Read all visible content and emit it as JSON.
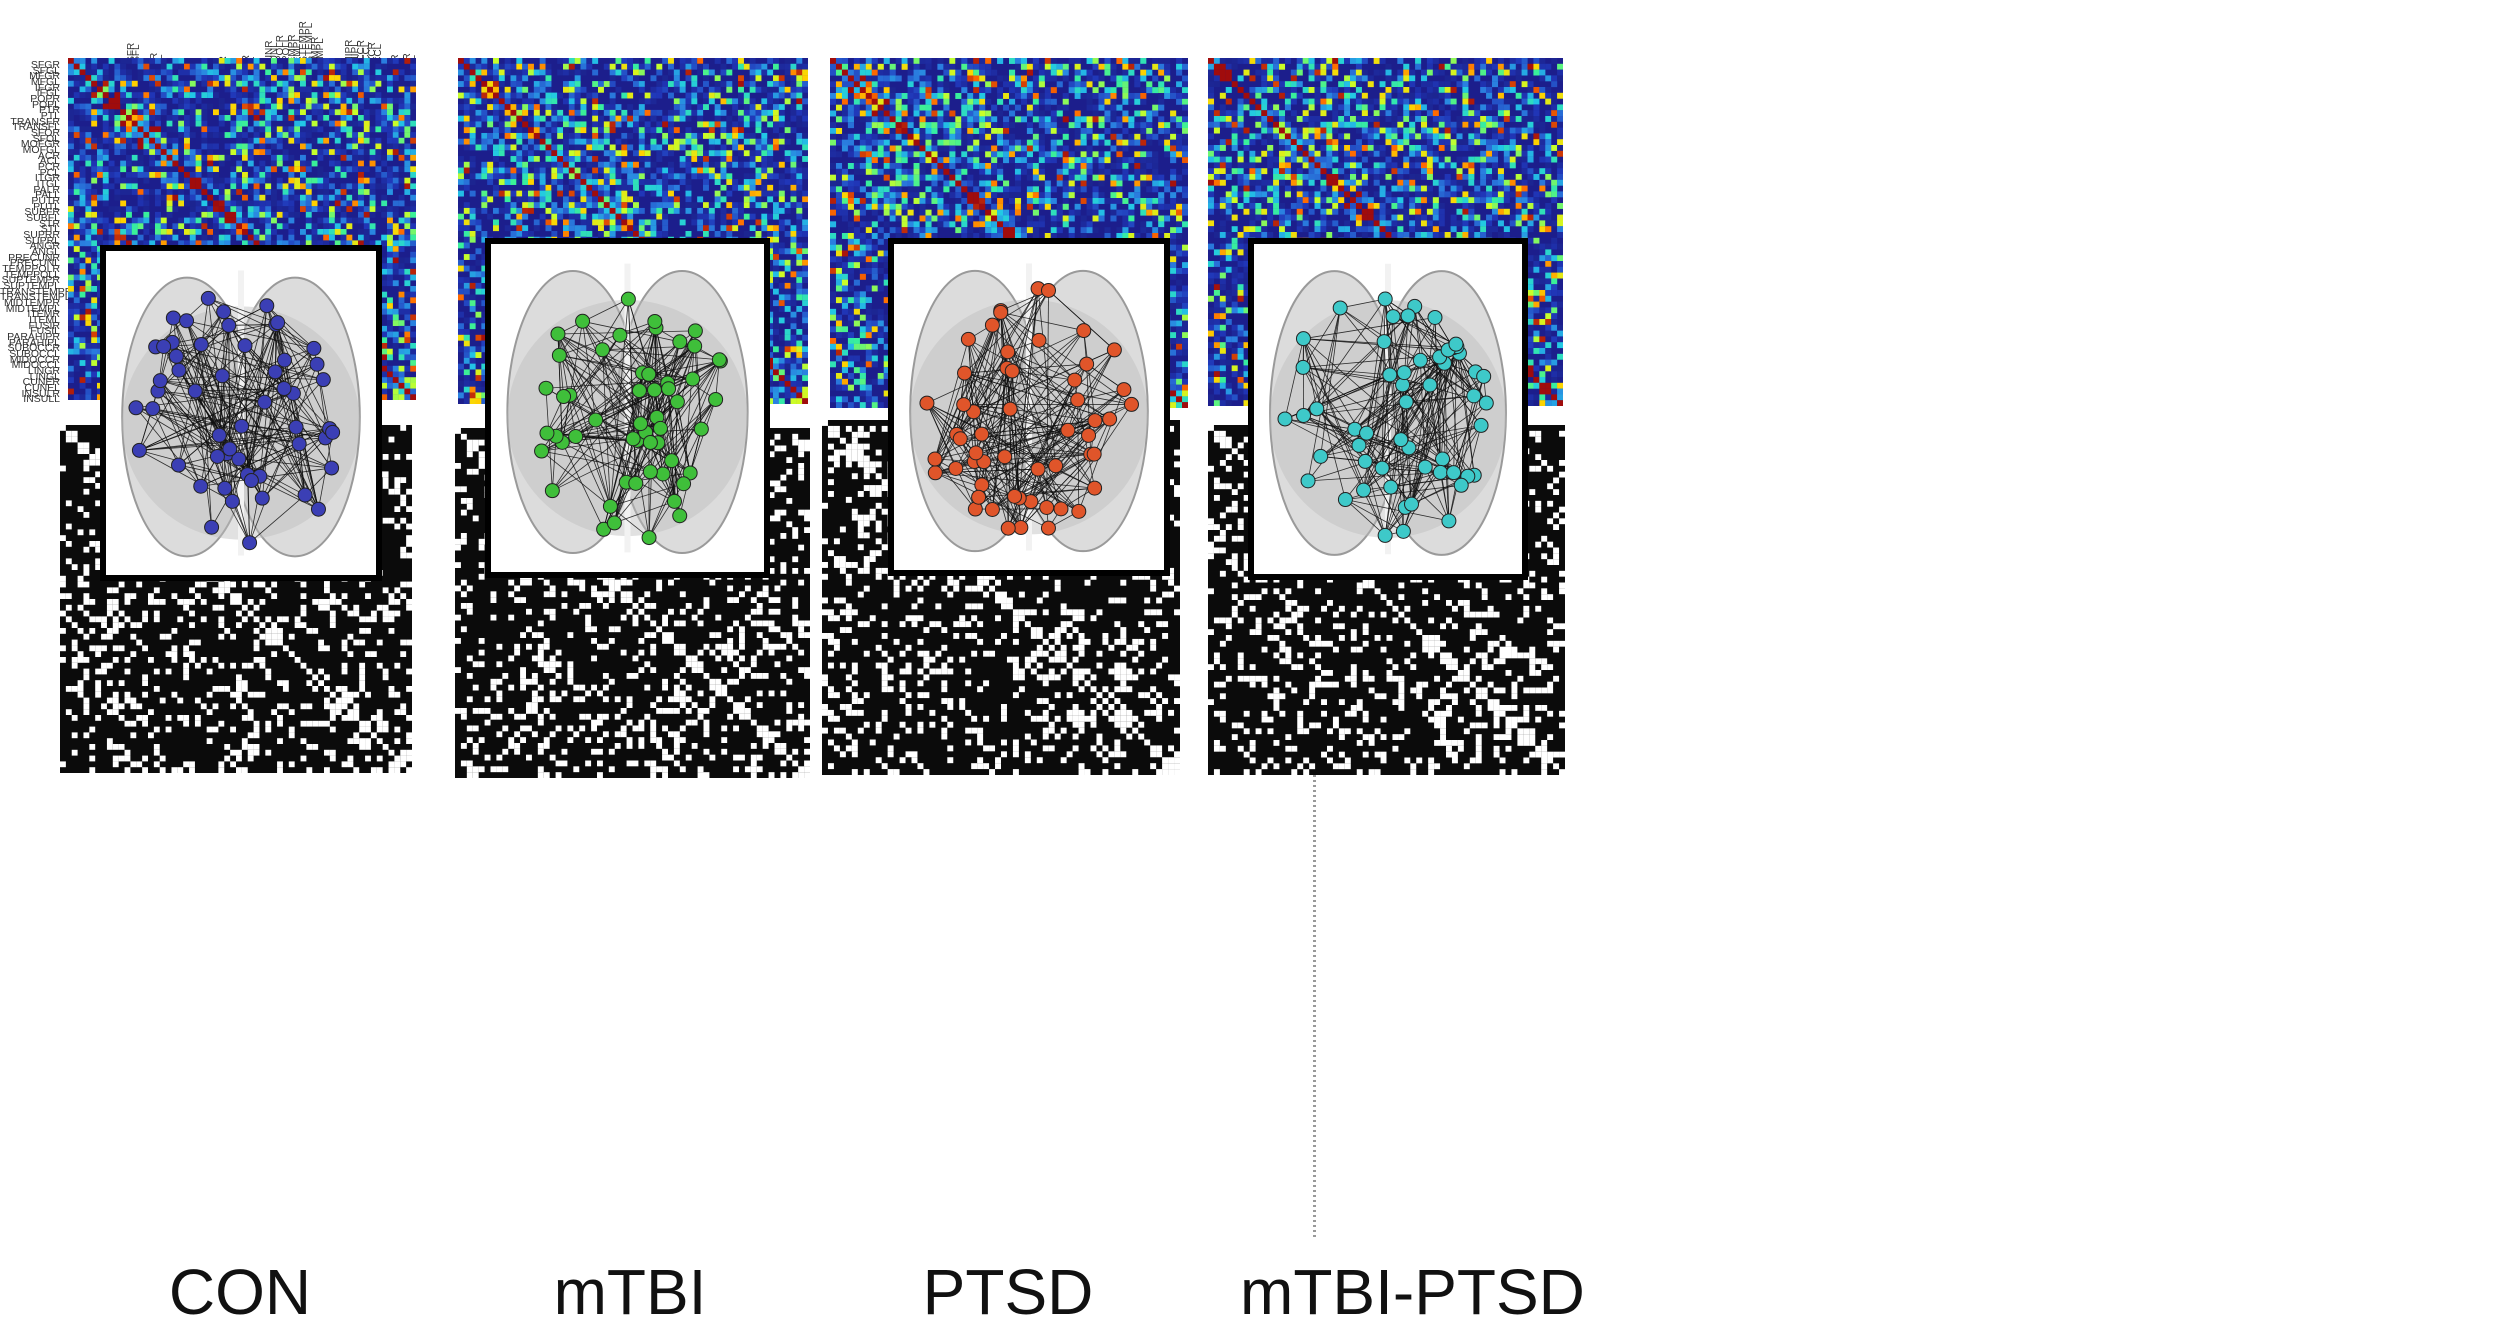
{
  "roi_labels": [
    "SFGR",
    "SFGL",
    "MFGR",
    "MFGL",
    "IFGR",
    "IFGL",
    "POPR",
    "POPL",
    "PTR",
    "PTL",
    "TRANSFR",
    "TRANSFL",
    "SFOR",
    "SFOL",
    "MOFGR",
    "MOFGL",
    "ACR",
    "ACL",
    "PCR",
    "PCL",
    "ITGR",
    "ITGL",
    "PALR",
    "PALL",
    "PUTR",
    "PUTL",
    "SUBFR",
    "SUBFL",
    "STR",
    "STL",
    "SUPRR",
    "SUPRL",
    "ANGR",
    "ANGL",
    "PRECUNR",
    "PRECUNL",
    "TEMPPOLR",
    "TEMPPOLL",
    "SUPTEMPR",
    "SUPTEMPL",
    "TRANSTEMPR",
    "TRANSTEMPL",
    "MIDTEMPR",
    "MIDTEMPL",
    "ITEMR",
    "ITEML",
    "FUSIR",
    "FUSIL",
    "PARAHIPR",
    "PARAHIPL",
    "SUBOCCR",
    "SUBOCCL",
    "MIDOCCR",
    "MIDOCCL",
    "LINGR",
    "LINGL",
    "CUNER",
    "CUNEL",
    "INSULR",
    "INSULL"
  ],
  "groups": [
    {
      "label": "CON",
      "node_color": "#3b3fb5",
      "seed": 11
    },
    {
      "label": "mTBI",
      "node_color": "#3fbf3a",
      "seed": 23
    },
    {
      "label": "PTSD",
      "node_color": "#e0552a",
      "seed": 37
    },
    {
      "label": "mTBI-PTSD",
      "node_color": "#3ec9c9",
      "seed": 51
    }
  ],
  "colors": {
    "heat_low": "#1c1e8c",
    "binary_bg": "#0b0b0b",
    "binary_on": "#ffffff"
  }
}
